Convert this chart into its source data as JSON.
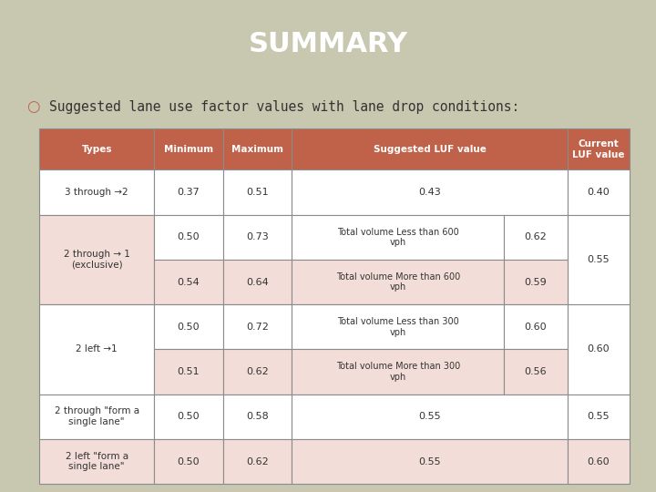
{
  "title": "SUMMARY",
  "subtitle": "Suggested lane use factor values with lane drop conditions:",
  "title_bg": "#4a3f3a",
  "title_color": "#ffffff",
  "slide_bg": "#c8c8b0",
  "header_bg": "#c0614a",
  "header_color": "#ffffff",
  "table_bg_white": "#ffffff",
  "table_bg_pink": "#f2ddd8",
  "table_bg_green": "#c8c8b0",
  "border_color": "#8b8b8b",
  "header_row": [
    "Types",
    "Minimum",
    "Maximum",
    "Suggested LUF value",
    "Current\nLUF value"
  ],
  "rows": [
    {
      "type": "3 through →2",
      "min": "0.37",
      "max": "0.51",
      "suggested": [
        {
          "desc": "0.43",
          "val": ""
        }
      ],
      "current": "0.40",
      "type_bg": "#ffffff",
      "sub_bgs": [
        "#ffffff"
      ]
    },
    {
      "type": "2 through → 1\n(exclusive)",
      "min_vals": [
        "0.50",
        "0.54"
      ],
      "max_vals": [
        "0.73",
        "0.64"
      ],
      "suggested": [
        {
          "desc": "Total volume Less than 600\nvph",
          "val": "0.62"
        },
        {
          "desc": "Total volume More than 600\nvph",
          "val": "0.59"
        }
      ],
      "current": "0.55",
      "type_bg": "#f2ddd8",
      "sub_bgs": [
        "#ffffff",
        "#f2ddd8"
      ]
    },
    {
      "type": "2 left →1",
      "min_vals": [
        "0.50",
        "0.51"
      ],
      "max_vals": [
        "0.72",
        "0.62"
      ],
      "suggested": [
        {
          "desc": "Total volume Less than 300\nvph",
          "val": "0.60"
        },
        {
          "desc": "Total volume More than 300\nvph",
          "val": "0.56"
        }
      ],
      "current": "0.60",
      "type_bg": "#ffffff",
      "sub_bgs": [
        "#ffffff",
        "#f2ddd8"
      ]
    },
    {
      "type": "2 through \"form a\nsingle lane\"",
      "min": "0.50",
      "max": "0.58",
      "suggested": [
        {
          "desc": "0.55",
          "val": ""
        }
      ],
      "current": "0.55",
      "type_bg": "#ffffff",
      "sub_bgs": [
        "#ffffff"
      ]
    },
    {
      "type": "2 left \"form a\nsingle lane\"",
      "min": "0.50",
      "max": "0.62",
      "suggested": [
        {
          "desc": "0.55",
          "val": ""
        }
      ],
      "current": "0.60",
      "type_bg": "#f2ddd8",
      "sub_bgs": [
        "#f2ddd8"
      ]
    }
  ]
}
